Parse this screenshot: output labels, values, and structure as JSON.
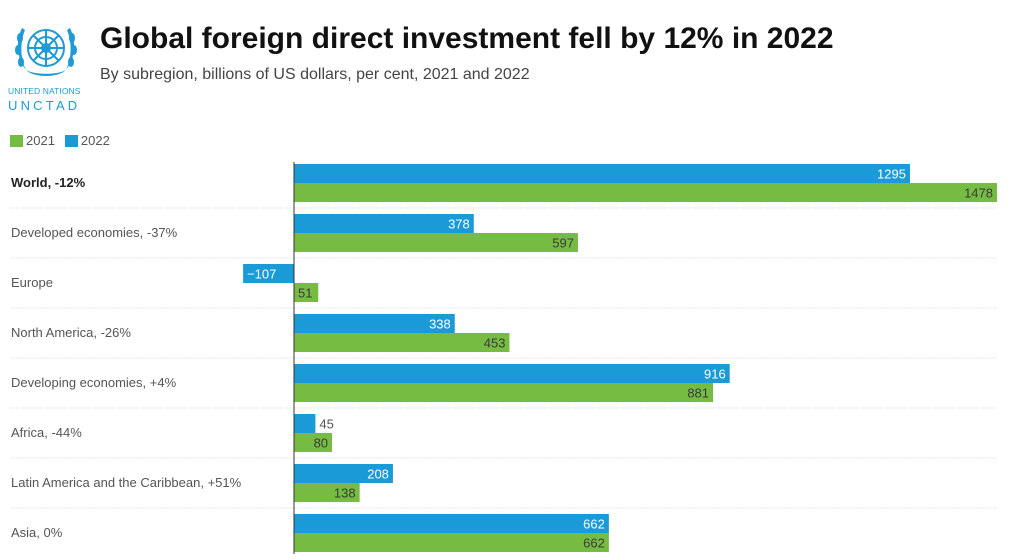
{
  "header": {
    "title": "Global foreign direct investment fell by 12% in 2022",
    "subtitle": "By subregion, billions of US dollars, per cent, 2021 and 2022"
  },
  "logo": {
    "org_name": "UNITED NATIONS",
    "acronym": "UNCTAD"
  },
  "colors": {
    "series_2021": "#76bc43",
    "series_2022": "#1a9ad6",
    "logo": "#1e9ad6"
  },
  "chart_data": {
    "type": "bar",
    "orientation": "horizontal",
    "categories": [
      "World, -12%",
      "Developed economies, -37%",
      "Europe",
      "North America, -26%",
      "Developing economies, +4%",
      "Africa, -44%",
      "Latin America and the Caribbean, +51%",
      "Asia, 0%"
    ],
    "bold_categories": [
      "World, -12%"
    ],
    "series": [
      {
        "name": "2022",
        "values": [
          1295,
          378,
          -107,
          338,
          916,
          45,
          208,
          662
        ]
      },
      {
        "name": "2021",
        "values": [
          1478,
          597,
          51,
          453,
          881,
          80,
          138,
          662
        ]
      }
    ],
    "legend_order": [
      "2021",
      "2022"
    ],
    "legend_position": "top-left",
    "xlim": [
      -107,
      1478
    ],
    "grid": false,
    "data_labels": true
  }
}
